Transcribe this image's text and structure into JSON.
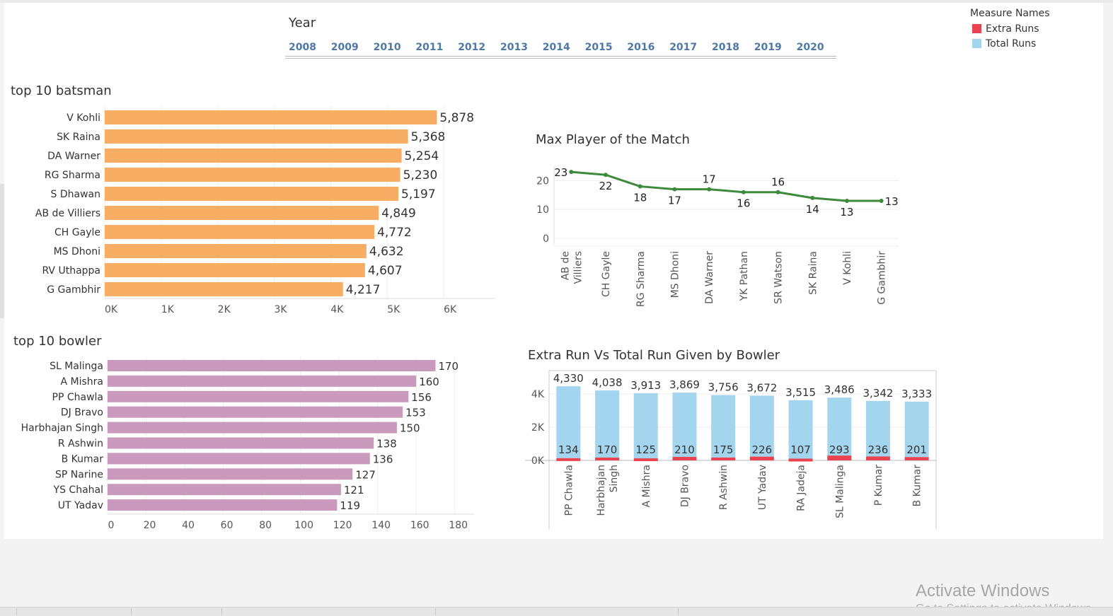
{
  "year_filter": {
    "title": "Year",
    "years": [
      "2008",
      "2009",
      "2010",
      "2011",
      "2012",
      "2013",
      "2014",
      "2015",
      "2016",
      "2017",
      "2018",
      "2019",
      "2020"
    ]
  },
  "legend": {
    "title": "Measure Names",
    "items": [
      {
        "label": "Extra Runs",
        "color": "#e8434f"
      },
      {
        "label": "Total Runs",
        "color": "#a3d5ef"
      }
    ]
  },
  "watermark": {
    "line1": "Activate Windows",
    "line2": "Go to Settings to activate Windows."
  },
  "chart_data": [
    {
      "type": "bar",
      "orientation": "horizontal",
      "title": "top 10 batsman",
      "color": "#f7ad63",
      "categories": [
        "V Kohli",
        "SK Raina",
        "DA Warner",
        "RG Sharma",
        "S Dhawan",
        "AB de Villiers",
        "CH Gayle",
        "MS Dhoni",
        "RV Uthappa",
        "G Gambhir"
      ],
      "values": [
        5878,
        5368,
        5254,
        5230,
        5197,
        4849,
        4772,
        4632,
        4607,
        4217
      ],
      "value_labels": [
        "5,878",
        "5,368",
        "5,254",
        "5,230",
        "5,197",
        "4,849",
        "4,772",
        "4,632",
        "4,607",
        "4,217"
      ],
      "xlim": [
        0,
        6900
      ],
      "xticks": [
        0,
        1000,
        2000,
        3000,
        4000,
        5000,
        6000
      ],
      "xtick_labels": [
        "0K",
        "1K",
        "2K",
        "3K",
        "4K",
        "5K",
        "6K"
      ],
      "grid": true
    },
    {
      "type": "bar",
      "orientation": "horizontal",
      "title": "top 10 bowler",
      "color": "#c99abb",
      "categories": [
        "SL Malinga",
        "A Mishra",
        "PP Chawla",
        "DJ Bravo",
        "Harbhajan Singh",
        "R Ashwin",
        "B Kumar",
        "SP Narine",
        "YS Chahal",
        "UT Yadav"
      ],
      "values": [
        170,
        160,
        156,
        153,
        150,
        138,
        136,
        127,
        121,
        119
      ],
      "value_labels": [
        "170",
        "160",
        "156",
        "153",
        "150",
        "138",
        "136",
        "127",
        "121",
        "119"
      ],
      "xlim": [
        0,
        190
      ],
      "xticks": [
        0,
        20,
        40,
        60,
        80,
        100,
        120,
        140,
        160,
        180
      ],
      "xtick_labels": [
        "0",
        "20",
        "40",
        "60",
        "80",
        "100",
        "120",
        "140",
        "160",
        "180"
      ],
      "grid": true
    },
    {
      "type": "line",
      "title": "Max Player of the Match",
      "color": "#3c8a3c",
      "categories": [
        "AB de Villiers",
        "CH Gayle",
        "RG Sharma",
        "MS Dhoni",
        "DA Warner",
        "YK Pathan",
        "SR Watson",
        "SK Raina",
        "V Kohli",
        "G Gambhir"
      ],
      "tick_lines": [
        [
          "AB de",
          "Villiers"
        ],
        [
          "CH Gayle"
        ],
        [
          "RG Sharma"
        ],
        [
          "MS Dhoni"
        ],
        [
          "DA Warner"
        ],
        [
          "YK Pathan"
        ],
        [
          "SR Watson"
        ],
        [
          "SK Raina"
        ],
        [
          "V Kohli"
        ],
        [
          "G Gambhir"
        ]
      ],
      "values": [
        23,
        22,
        18,
        17,
        17,
        16,
        16,
        14,
        13,
        13
      ],
      "value_labels": [
        "23",
        "22",
        "18",
        "17",
        "17",
        "16",
        "16",
        "14",
        "13",
        "13"
      ],
      "ylim": [
        0,
        25
      ],
      "yticks": [
        0,
        10,
        20
      ],
      "ytick_labels": [
        "0",
        "10",
        "20"
      ],
      "grid": true
    },
    {
      "type": "bar",
      "stacked": true,
      "title": "Extra Run Vs Total Run Given by Bowler",
      "categories": [
        "PP Chawla",
        "Harbhajan Singh",
        "A Mishra",
        "DJ Bravo",
        "R Ashwin",
        "UT Yadav",
        "RA Jadeja",
        "SL Malinga",
        "P Kumar",
        "B Kumar"
      ],
      "tick_lines": [
        [
          "PP Chawla"
        ],
        [
          "Harbhajan",
          "Singh"
        ],
        [
          "A Mishra"
        ],
        [
          "DJ Bravo"
        ],
        [
          "R Ashwin"
        ],
        [
          "UT Yadav"
        ],
        [
          "RA Jadeja"
        ],
        [
          "SL Malinga"
        ],
        [
          "P Kumar"
        ],
        [
          "B Kumar"
        ]
      ],
      "series": [
        {
          "name": "Extra Runs",
          "color": "#e8434f",
          "values": [
            134,
            170,
            125,
            210,
            175,
            226,
            107,
            293,
            236,
            201
          ],
          "value_labels": [
            "134",
            "170",
            "125",
            "210",
            "175",
            "226",
            "107",
            "293",
            "236",
            "201"
          ]
        },
        {
          "name": "Total Runs",
          "color": "#a3d5ef",
          "values": [
            4330,
            4038,
            3913,
            3869,
            3756,
            3672,
            3515,
            3486,
            3342,
            3333
          ],
          "value_labels": [
            "4,330",
            "4,038",
            "3,913",
            "3,869",
            "3,756",
            "3,672",
            "3,515",
            "3,486",
            "3,342",
            "3,333"
          ]
        }
      ],
      "ylim": [
        0,
        5000
      ],
      "yticks": [
        0,
        2000,
        4000
      ],
      "ytick_labels": [
        "0K",
        "2K",
        "4K"
      ],
      "grid": true
    }
  ]
}
